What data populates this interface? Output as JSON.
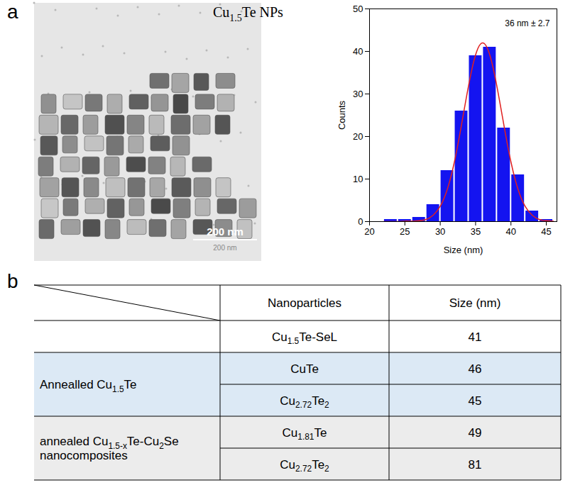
{
  "letters": [
    "a",
    "b"
  ],
  "image": {
    "title": "Cu1.5Te NPs",
    "scale_bar": "200 nm",
    "scale_bar_caption": "200 nm"
  },
  "chart_data": {
    "type": "histogram",
    "x_label": "Size (nm)",
    "y_label": "Counts",
    "annotation": "36 nm ± 2.7",
    "bins": [
      22,
      24,
      26,
      28,
      30,
      32,
      34,
      36,
      38,
      40,
      42,
      44,
      46
    ],
    "values": [
      0.5,
      0.5,
      1,
      4,
      12,
      26,
      39,
      41,
      22,
      11,
      2.5,
      0.5
    ],
    "color": "#1414f0",
    "xlim": [
      20,
      46.5
    ],
    "xticks": [
      20,
      25,
      30,
      35,
      40,
      45
    ],
    "ylim": [
      0,
      50
    ],
    "yticks": [
      0,
      10,
      20,
      30,
      40,
      50
    ],
    "fit": {
      "type": "line",
      "color": "#e02020",
      "x": [
        22,
        23,
        24,
        25,
        26,
        27,
        28,
        29,
        30,
        31,
        32,
        33,
        34,
        35,
        36,
        37,
        38,
        39,
        40,
        41,
        42,
        43,
        44,
        45,
        46
      ],
      "values": [
        0,
        0,
        0,
        0.1,
        0.1,
        0.2,
        0.5,
        1.5,
        3.6,
        7.6,
        14,
        22.7,
        31.9,
        39.2,
        42,
        39.2,
        31.9,
        22.7,
        14,
        7.6,
        3.6,
        1.5,
        0.5,
        0.2,
        0.1
      ]
    }
  },
  "table": {
    "columns": [
      "Nanoparticles",
      "Size (nm)"
    ],
    "groups": [
      {
        "label": null,
        "color": "#ffffff",
        "rows": [
          [
            "Cu1.5Te-SeL",
            41
          ]
        ]
      },
      {
        "label": "Annealled Cu1.5Te",
        "color": "#dce9f5",
        "rows": [
          [
            "CuTe",
            46
          ],
          [
            "Cu2.72Te2",
            45
          ]
        ]
      },
      {
        "label": "annealed Cu1.5-xTe-Cu2Se nanocomposites",
        "color": "#ececec",
        "rows": [
          [
            "Cu1.81Te",
            49
          ],
          [
            "Cu2.72Te2",
            81
          ]
        ]
      }
    ]
  }
}
